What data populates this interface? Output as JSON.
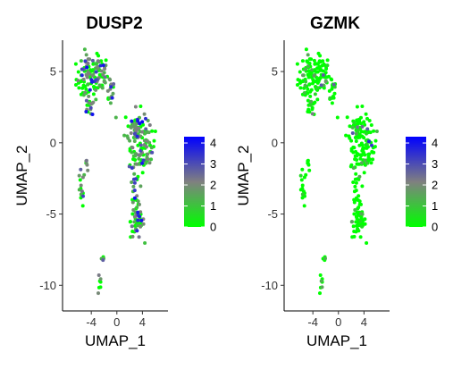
{
  "chart_data": [
    {
      "type": "scatter",
      "title": "DUSP2",
      "xlabel": "UMAP_1",
      "ylabel": "UMAP_2",
      "xticks": [
        -4,
        0,
        4
      ],
      "yticks": [
        5,
        0,
        -5,
        -10
      ],
      "xlim": [
        -8.5,
        8.0
      ],
      "ylim": [
        -11.8,
        7.2
      ],
      "legend": {
        "position": "right",
        "ticks": [
          0,
          1,
          2,
          3,
          4
        ],
        "min": 0,
        "max": 4.3,
        "colors": {
          "low": "#00ff00",
          "mid": "#808080",
          "high": "#0000ff"
        }
      },
      "expression_level": "high"
    },
    {
      "type": "scatter",
      "title": "GZMK",
      "xlabel": "UMAP_1",
      "ylabel": "UMAP_2",
      "xticks": [
        -4,
        0,
        4
      ],
      "yticks": [
        5,
        0,
        -5,
        -10
      ],
      "xlim": [
        -8.5,
        8.0
      ],
      "ylim": [
        -11.8,
        7.2
      ],
      "legend": {
        "position": "right",
        "ticks": [
          0,
          1,
          2,
          3,
          4
        ],
        "min": 0,
        "max": 4.3,
        "colors": {
          "low": "#00ff00",
          "mid": "#808080",
          "high": "#0000ff"
        }
      },
      "expression_level": "low"
    }
  ],
  "clusters": [
    {
      "cx": -4.4,
      "cy": 4.5,
      "sx": 1.3,
      "sy": 1.1,
      "n": 90
    },
    {
      "cx": -2.5,
      "cy": 4.8,
      "sx": 0.7,
      "sy": 0.9,
      "n": 40
    },
    {
      "cx": -1.0,
      "cy": 3.8,
      "sx": 0.5,
      "sy": 0.8,
      "n": 20
    },
    {
      "cx": -4.0,
      "cy": 2.5,
      "sx": 0.5,
      "sy": 0.5,
      "n": 12
    },
    {
      "cx": 3.0,
      "cy": 1.0,
      "sx": 1.2,
      "sy": 0.9,
      "n": 70
    },
    {
      "cx": 4.5,
      "cy": -0.5,
      "sx": 1.0,
      "sy": 1.0,
      "n": 50
    },
    {
      "cx": 2.8,
      "cy": -1.5,
      "sx": 0.7,
      "sy": 0.8,
      "n": 25
    },
    {
      "cx": 3.2,
      "cy": -5.5,
      "sx": 0.7,
      "sy": 0.8,
      "n": 55
    },
    {
      "cx": 2.8,
      "cy": -3.8,
      "sx": 0.4,
      "sy": 0.5,
      "n": 10
    },
    {
      "cx": -4.6,
      "cy": -1.5,
      "sx": 0.4,
      "sy": 0.4,
      "n": 6
    },
    {
      "cx": -5.6,
      "cy": -3.3,
      "sx": 0.4,
      "sy": 0.9,
      "n": 14
    },
    {
      "cx": -2.3,
      "cy": -8.3,
      "sx": 0.2,
      "sy": 0.3,
      "n": 4
    },
    {
      "cx": -2.7,
      "cy": -10.0,
      "sx": 0.3,
      "sy": 0.5,
      "n": 7
    }
  ]
}
